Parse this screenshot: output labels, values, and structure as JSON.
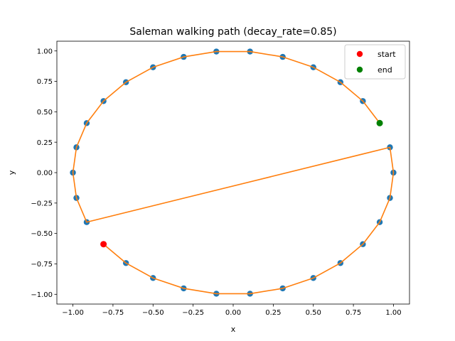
{
  "chart_data": {
    "type": "scatter",
    "title": "Saleman walking path (decay_rate=0.85)",
    "xlabel": "x",
    "ylabel": "y",
    "xlim": [
      -1.1,
      1.1
    ],
    "ylim": [
      -1.08,
      1.08
    ],
    "xticks": [
      -1.0,
      -0.75,
      -0.5,
      -0.25,
      0.0,
      0.25,
      0.5,
      0.75,
      1.0
    ],
    "xtick_labels": [
      "−1.00",
      "−0.75",
      "−0.50",
      "−0.25",
      "0.00",
      "0.25",
      "0.50",
      "0.75",
      "1.00"
    ],
    "yticks": [
      -1.0,
      -0.75,
      -0.5,
      -0.25,
      0.0,
      0.25,
      0.5,
      0.75,
      1.0
    ],
    "ytick_labels": [
      "−1.00",
      "−0.75",
      "−0.50",
      "−0.25",
      "0.00",
      "0.25",
      "0.50",
      "0.75",
      "1.00"
    ],
    "grid": false,
    "legend_position": "top-right",
    "colors": {
      "points": "#1f77b4",
      "path": "#ff7f0e",
      "start": "#ff0000",
      "end": "#008000"
    },
    "points": [
      {
        "x": 1.0,
        "y": 0.0
      },
      {
        "x": 0.978,
        "y": 0.208
      },
      {
        "x": 0.914,
        "y": 0.407
      },
      {
        "x": 0.809,
        "y": 0.588
      },
      {
        "x": 0.669,
        "y": 0.743
      },
      {
        "x": 0.5,
        "y": 0.866
      },
      {
        "x": 0.309,
        "y": 0.951
      },
      {
        "x": 0.105,
        "y": 0.995
      },
      {
        "x": -0.105,
        "y": 0.995
      },
      {
        "x": -0.309,
        "y": 0.951
      },
      {
        "x": -0.5,
        "y": 0.866
      },
      {
        "x": -0.669,
        "y": 0.743
      },
      {
        "x": -0.809,
        "y": 0.588
      },
      {
        "x": -0.914,
        "y": 0.407
      },
      {
        "x": -0.978,
        "y": 0.208
      },
      {
        "x": -1.0,
        "y": 0.0
      },
      {
        "x": -0.978,
        "y": -0.208
      },
      {
        "x": -0.914,
        "y": -0.407
      },
      {
        "x": -0.809,
        "y": -0.588
      },
      {
        "x": -0.669,
        "y": -0.743
      },
      {
        "x": -0.5,
        "y": -0.866
      },
      {
        "x": -0.309,
        "y": -0.951
      },
      {
        "x": -0.105,
        "y": -0.995
      },
      {
        "x": 0.105,
        "y": -0.995
      },
      {
        "x": 0.309,
        "y": -0.951
      },
      {
        "x": 0.5,
        "y": -0.866
      },
      {
        "x": 0.669,
        "y": -0.743
      },
      {
        "x": 0.809,
        "y": -0.588
      },
      {
        "x": 0.914,
        "y": -0.407
      },
      {
        "x": 0.978,
        "y": -0.208
      }
    ],
    "path": [
      {
        "x": -0.809,
        "y": -0.588
      },
      {
        "x": -0.669,
        "y": -0.743
      },
      {
        "x": -0.5,
        "y": -0.866
      },
      {
        "x": -0.309,
        "y": -0.951
      },
      {
        "x": -0.105,
        "y": -0.995
      },
      {
        "x": 0.105,
        "y": -0.995
      },
      {
        "x": 0.309,
        "y": -0.951
      },
      {
        "x": 0.5,
        "y": -0.866
      },
      {
        "x": 0.669,
        "y": -0.743
      },
      {
        "x": 0.809,
        "y": -0.588
      },
      {
        "x": 0.914,
        "y": -0.407
      },
      {
        "x": 0.978,
        "y": -0.208
      },
      {
        "x": 1.0,
        "y": 0.0
      },
      {
        "x": 0.978,
        "y": 0.208
      },
      {
        "x": -0.914,
        "y": -0.407
      },
      {
        "x": -0.978,
        "y": -0.208
      },
      {
        "x": -1.0,
        "y": 0.0
      },
      {
        "x": -0.978,
        "y": 0.208
      },
      {
        "x": -0.914,
        "y": 0.407
      },
      {
        "x": -0.809,
        "y": 0.588
      },
      {
        "x": -0.669,
        "y": 0.743
      },
      {
        "x": -0.5,
        "y": 0.866
      },
      {
        "x": -0.309,
        "y": 0.951
      },
      {
        "x": -0.105,
        "y": 0.995
      },
      {
        "x": 0.105,
        "y": 0.995
      },
      {
        "x": 0.309,
        "y": 0.951
      },
      {
        "x": 0.5,
        "y": 0.866
      },
      {
        "x": 0.669,
        "y": 0.743
      },
      {
        "x": 0.809,
        "y": 0.588
      },
      {
        "x": 0.914,
        "y": 0.407
      }
    ],
    "start": {
      "x": -0.809,
      "y": -0.588
    },
    "end": {
      "x": 0.914,
      "y": 0.407
    },
    "legend": [
      {
        "label": "start",
        "color_key": "start"
      },
      {
        "label": "end",
        "color_key": "end"
      }
    ]
  }
}
